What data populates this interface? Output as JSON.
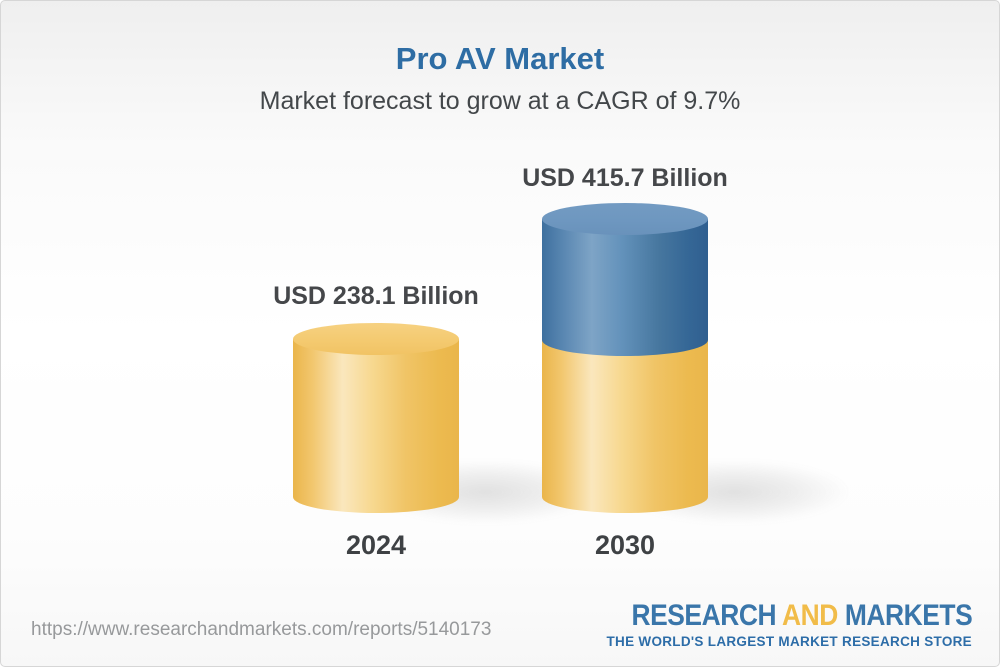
{
  "page": {
    "title": "Pro AV Market",
    "subtitle": "Market forecast to grow at a CAGR of 9.7%"
  },
  "chart_data": {
    "type": "bar",
    "subtype": "3d-cylinder-stacked",
    "categories": [
      "2024",
      "2030"
    ],
    "values": [
      238.1,
      415.7
    ],
    "unit": "USD Billion",
    "value_labels": [
      "USD 238.1 Billion",
      "USD 415.7 Billion"
    ],
    "title": "Pro AV Market",
    "subtitle": "Market forecast to grow at a CAGR of 9.7%",
    "cagr_percent": 9.7,
    "legend": "none",
    "axes": "none",
    "grid": false,
    "colors": {
      "base_segment_gold": "#f0c05e",
      "growth_segment_blue": "#4d7dab",
      "title_blue": "#2e6da4",
      "label_dark": "#45474a"
    },
    "notes": "2030 cylinder is stacked: gold base segment with blue growth segment on top; 2024 cylinder is all gold"
  },
  "footer": {
    "url": "https://www.researchandmarkets.com/reports/5140173",
    "logo": {
      "research": "RESEARCH",
      "and": "AND",
      "markets": "MARKETS",
      "tagline": "THE WORLD'S LARGEST MARKET RESEARCH STORE"
    }
  }
}
